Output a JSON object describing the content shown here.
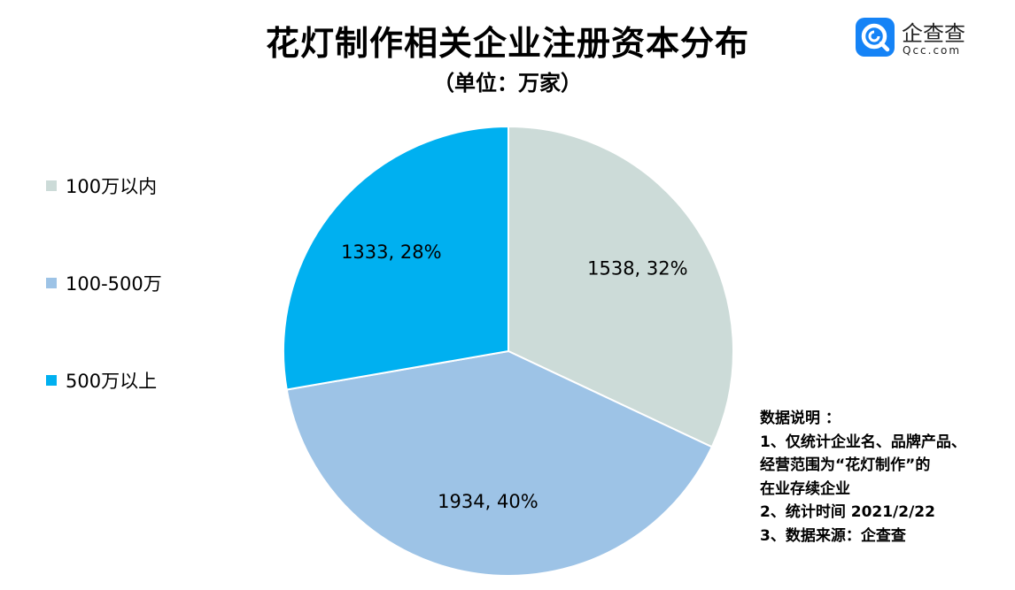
{
  "header": {
    "title": "花灯制作相关企业注册资本分布",
    "subtitle": "（单位：万家）"
  },
  "logo": {
    "name": "企查查",
    "domain": "Qcc.com",
    "brand_color": "#1583f6"
  },
  "chart_data": {
    "type": "pie",
    "title": "花灯制作相关企业注册资本分布",
    "subtitle": "（单位：万家）",
    "legend_position": "left",
    "slices": [
      {
        "label": "100万以内",
        "value": 1538,
        "percent": 32,
        "color": "#ccdbd8",
        "data_label": "1538, 32%"
      },
      {
        "label": "100-500万",
        "value": 1934,
        "percent": 40,
        "color": "#9dc3e6",
        "data_label": "1934, 40%"
      },
      {
        "label": "500万以上",
        "value": 1333,
        "percent": 28,
        "color": "#00b0f0",
        "data_label": "1333, 28%"
      }
    ]
  },
  "notes": {
    "lines": [
      "数据说明 ：",
      "1、仅统计企业名、品牌产品、",
      "经营范围为“花灯制作”的",
      "在业存续企业",
      "2、统计时间 2021/2/22",
      "3、数据来源：企查查"
    ]
  }
}
